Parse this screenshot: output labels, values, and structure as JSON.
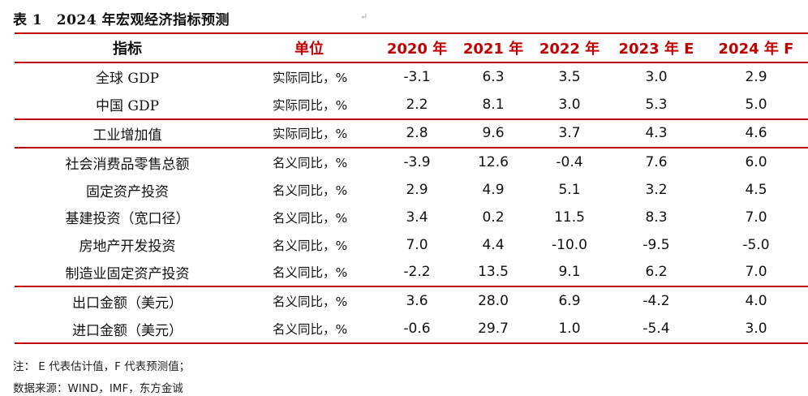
{
  "title": "表 1　2024 年宏观经济指标预测",
  "mark": "↵",
  "headers": [
    "指标",
    "单位",
    "2020 年",
    "2021 年",
    "2022 年",
    "2023 年 E",
    "2024 年 F"
  ],
  "rows": [
    {
      "indicator": "全球 GDP",
      "unit": "实际同比，%",
      "values": [
        "-3.1",
        "6.3",
        "3.5",
        "3.0",
        "2.9"
      ]
    },
    {
      "indicator": "中国 GDP",
      "unit": "实际同比，%",
      "values": [
        "2.2",
        "8.1",
        "3.0",
        "5.3",
        "5.0"
      ]
    },
    {
      "indicator": "工业增加值",
      "unit": "实际同比，%",
      "values": [
        "2.8",
        "9.6",
        "3.7",
        "4.3",
        "4.6"
      ]
    },
    {
      "indicator": "社会消费品零售总额",
      "unit": "名义同比，%",
      "values": [
        "-3.9",
        "12.6",
        "-0.4",
        "7.6",
        "6.0"
      ]
    },
    {
      "indicator": "固定资产投资",
      "unit": "名义同比，%",
      "values": [
        "2.9",
        "4.9",
        "5.1",
        "3.2",
        "4.5"
      ]
    },
    {
      "indicator": "基建投资（宽口径）",
      "unit": "名义同比，%",
      "values": [
        "3.4",
        "0.2",
        "11.5",
        "8.3",
        "7.0"
      ]
    },
    {
      "indicator": "房地产开发投资",
      "unit": "名义同比，%",
      "values": [
        "7.0",
        "4.4",
        "-10.0",
        "-9.5",
        "-5.0"
      ]
    },
    {
      "indicator": "制造业固定资产投资",
      "unit": "名义同比，%",
      "values": [
        "-2.2",
        "13.5",
        "9.1",
        "6.2",
        "7.0"
      ]
    },
    {
      "indicator": "出口金额（美元）",
      "unit": "名义同比，%",
      "values": [
        "3.6",
        "28.0",
        "6.9",
        "-4.2",
        "4.0"
      ]
    },
    {
      "indicator": "进口金额（美元）",
      "unit": "名义同比，%",
      "values": [
        "-0.6",
        "29.7",
        "1.0",
        "-5.4",
        "3.0"
      ]
    }
  ],
  "note": "注：  E 代表估计值，F 代表预测值；",
  "source": "数据来源：WIND，IMF，东方金诚",
  "colors": {
    "accent": "#c00000"
  }
}
